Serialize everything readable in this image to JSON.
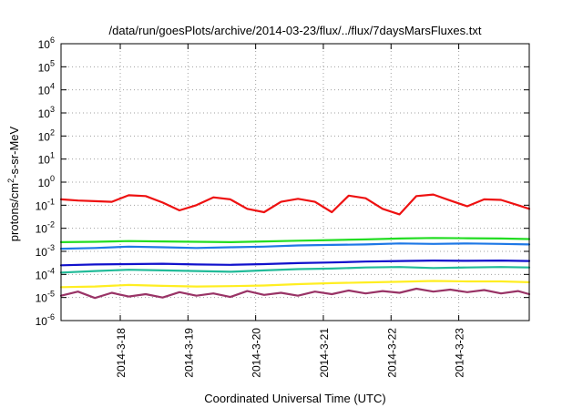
{
  "chart_data": {
    "type": "line",
    "title": "/data/run/goesPlots/archive/2014-03-23/flux/../flux/7daysMarsFluxes.txt",
    "xlabel": "Coordinated Universal Time (UTC)",
    "ylabel": {
      "base": "protons/cm",
      "sup": "2",
      "rest": "-s-sr-MeV"
    },
    "yscale": "log",
    "ylim": [
      1e-06,
      1000000.0
    ],
    "y_ticks": [
      {
        "value": 1e-06,
        "label": "10",
        "exp": "-6"
      },
      {
        "value": 1e-05,
        "label": "10",
        "exp": "-5"
      },
      {
        "value": 0.0001,
        "label": "10",
        "exp": "-4"
      },
      {
        "value": 0.001,
        "label": "10",
        "exp": "-3"
      },
      {
        "value": 0.01,
        "label": "10",
        "exp": "-2"
      },
      {
        "value": 0.1,
        "label": "10",
        "exp": "-1"
      },
      {
        "value": 1,
        "label": "10",
        "exp": "0"
      },
      {
        "value": 10,
        "label": "10",
        "exp": "1"
      },
      {
        "value": 100,
        "label": "10",
        "exp": "2"
      },
      {
        "value": 1000,
        "label": "10",
        "exp": "3"
      },
      {
        "value": 10000,
        "label": "10",
        "exp": "4"
      },
      {
        "value": 100000,
        "label": "10",
        "exp": "5"
      },
      {
        "value": 1000000,
        "label": "10",
        "exp": "6"
      }
    ],
    "xlim": [
      "2014-03-17 03:00",
      "2014-03-24 01:00"
    ],
    "x_ticks": [
      "2014-3-18",
      "2014-3-19",
      "2014-3-20",
      "2014-3-21",
      "2014-3-22",
      "2014-3-23"
    ],
    "grid": true,
    "series": [
      {
        "color": "#ee1111",
        "x": [
          "2014-03-17 03:00",
          "2014-03-17 09:00",
          "2014-03-17 15:00",
          "2014-03-17 21:00",
          "2014-03-18 03:00",
          "2014-03-18 09:00",
          "2014-03-18 15:00",
          "2014-03-18 21:00",
          "2014-03-19 03:00",
          "2014-03-19 09:00",
          "2014-03-19 15:00",
          "2014-03-19 21:00",
          "2014-03-20 03:00",
          "2014-03-20 09:00",
          "2014-03-20 15:00",
          "2014-03-20 21:00",
          "2014-03-21 03:00",
          "2014-03-21 09:00",
          "2014-03-21 15:00",
          "2014-03-21 21:00",
          "2014-03-22 03:00",
          "2014-03-22 09:00",
          "2014-03-22 15:00",
          "2014-03-22 21:00",
          "2014-03-23 03:00",
          "2014-03-23 09:00",
          "2014-03-23 15:00",
          "2014-03-23 21:00",
          "2014-03-24 01:00"
        ],
        "values": [
          0.18,
          0.16,
          0.15,
          0.14,
          0.27,
          0.25,
          0.13,
          0.06,
          0.1,
          0.22,
          0.18,
          0.07,
          0.05,
          0.14,
          0.19,
          0.14,
          0.05,
          0.26,
          0.2,
          0.07,
          0.04,
          0.25,
          0.29,
          0.16,
          0.09,
          0.18,
          0.17,
          0.1,
          0.07
        ]
      },
      {
        "color": "#22dd22",
        "x": [
          "2014-03-17 03:00",
          "2014-03-17 15:00",
          "2014-03-18 03:00",
          "2014-03-18 15:00",
          "2014-03-19 03:00",
          "2014-03-19 15:00",
          "2014-03-20 03:00",
          "2014-03-20 15:00",
          "2014-03-21 03:00",
          "2014-03-21 15:00",
          "2014-03-22 03:00",
          "2014-03-22 15:00",
          "2014-03-23 03:00",
          "2014-03-23 15:00",
          "2014-03-24 01:00"
        ],
        "values": [
          0.0025,
          0.0026,
          0.0028,
          0.0027,
          0.0026,
          0.0025,
          0.0027,
          0.0029,
          0.0031,
          0.0033,
          0.0036,
          0.0038,
          0.0037,
          0.0036,
          0.0034
        ]
      },
      {
        "color": "#1e78e6",
        "x": [
          "2014-03-17 03:00",
          "2014-03-17 15:00",
          "2014-03-18 03:00",
          "2014-03-18 15:00",
          "2014-03-19 03:00",
          "2014-03-19 15:00",
          "2014-03-20 03:00",
          "2014-03-20 15:00",
          "2014-03-21 03:00",
          "2014-03-21 15:00",
          "2014-03-22 03:00",
          "2014-03-22 15:00",
          "2014-03-23 03:00",
          "2014-03-23 15:00",
          "2014-03-24 01:00"
        ],
        "values": [
          0.0013,
          0.0014,
          0.0016,
          0.0015,
          0.0014,
          0.0015,
          0.0016,
          0.0018,
          0.0019,
          0.002,
          0.0022,
          0.0021,
          0.0022,
          0.0021,
          0.002
        ]
      },
      {
        "color": "#1111cc",
        "x": [
          "2014-03-17 03:00",
          "2014-03-17 15:00",
          "2014-03-18 03:00",
          "2014-03-18 15:00",
          "2014-03-19 03:00",
          "2014-03-19 15:00",
          "2014-03-20 03:00",
          "2014-03-20 15:00",
          "2014-03-21 03:00",
          "2014-03-21 15:00",
          "2014-03-22 03:00",
          "2014-03-22 15:00",
          "2014-03-23 03:00",
          "2014-03-23 15:00",
          "2014-03-24 01:00"
        ],
        "values": [
          0.00025,
          0.00027,
          0.00028,
          0.00029,
          0.00027,
          0.00026,
          0.00028,
          0.00031,
          0.00033,
          0.00036,
          0.00038,
          0.0004,
          0.00039,
          0.0004,
          0.00038
        ]
      },
      {
        "color": "#22bb99",
        "x": [
          "2014-03-17 03:00",
          "2014-03-17 15:00",
          "2014-03-18 03:00",
          "2014-03-18 15:00",
          "2014-03-19 03:00",
          "2014-03-19 15:00",
          "2014-03-20 03:00",
          "2014-03-20 15:00",
          "2014-03-21 03:00",
          "2014-03-21 15:00",
          "2014-03-22 03:00",
          "2014-03-22 15:00",
          "2014-03-23 03:00",
          "2014-03-23 15:00",
          "2014-03-24 01:00"
        ],
        "values": [
          0.00012,
          0.00014,
          0.00016,
          0.00015,
          0.00014,
          0.00013,
          0.00015,
          0.00017,
          0.00018,
          0.0002,
          0.00021,
          0.00019,
          0.0002,
          0.00021,
          0.0002
        ]
      },
      {
        "color": "#ffee22",
        "x": [
          "2014-03-17 03:00",
          "2014-03-17 15:00",
          "2014-03-18 03:00",
          "2014-03-18 15:00",
          "2014-03-19 03:00",
          "2014-03-19 15:00",
          "2014-03-20 03:00",
          "2014-03-20 15:00",
          "2014-03-21 03:00",
          "2014-03-21 15:00",
          "2014-03-22 03:00",
          "2014-03-22 15:00",
          "2014-03-23 03:00",
          "2014-03-23 15:00",
          "2014-03-24 01:00"
        ],
        "values": [
          2.8e-05,
          3e-05,
          3.5e-05,
          3.2e-05,
          3e-05,
          3.1e-05,
          3.3e-05,
          3.8e-05,
          4.2e-05,
          4.5e-05,
          4.8e-05,
          5.2e-05,
          5e-05,
          5e-05,
          4.6e-05
        ]
      },
      {
        "color": "#993366",
        "x": [
          "2014-03-17 03:00",
          "2014-03-17 09:00",
          "2014-03-17 15:00",
          "2014-03-17 21:00",
          "2014-03-18 03:00",
          "2014-03-18 09:00",
          "2014-03-18 15:00",
          "2014-03-18 21:00",
          "2014-03-19 03:00",
          "2014-03-19 09:00",
          "2014-03-19 15:00",
          "2014-03-19 21:00",
          "2014-03-20 03:00",
          "2014-03-20 09:00",
          "2014-03-20 15:00",
          "2014-03-20 21:00",
          "2014-03-21 03:00",
          "2014-03-21 09:00",
          "2014-03-21 15:00",
          "2014-03-21 21:00",
          "2014-03-22 03:00",
          "2014-03-22 09:00",
          "2014-03-22 15:00",
          "2014-03-22 21:00",
          "2014-03-23 03:00",
          "2014-03-23 09:00",
          "2014-03-23 15:00",
          "2014-03-23 21:00",
          "2014-03-24 01:00"
        ],
        "values": [
          1.2e-05,
          1.8e-05,
          9.5e-06,
          1.6e-05,
          1.1e-05,
          1.4e-05,
          1e-05,
          1.7e-05,
          1.2e-05,
          1.5e-05,
          1.05e-05,
          1.9e-05,
          1.3e-05,
          1.6e-05,
          1.2e-05,
          1.8e-05,
          1.4e-05,
          2e-05,
          1.5e-05,
          1.9e-05,
          1.6e-05,
          2.4e-05,
          1.8e-05,
          2.2e-05,
          1.7e-05,
          2.1e-05,
          1.5e-05,
          1.9e-05,
          1.4e-05
        ]
      }
    ]
  },
  "colors": {
    "axis": "#000000",
    "grid": "#a0a0a0",
    "background": "#ffffff"
  }
}
